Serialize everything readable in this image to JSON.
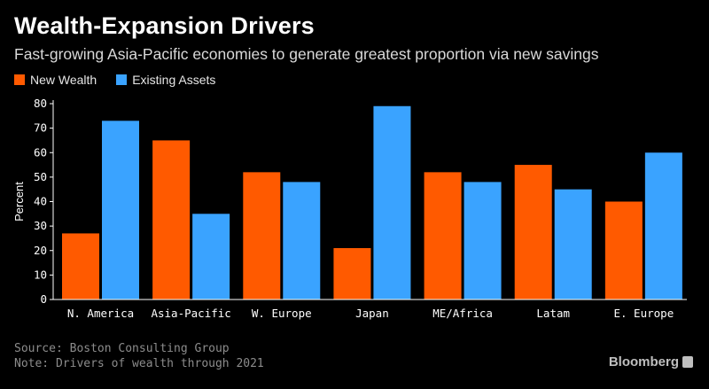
{
  "header": {
    "title": "Wealth-Expansion Drivers",
    "subtitle": "Fast-growing Asia-Pacific economies to generate greatest proportion via new savings"
  },
  "footer": {
    "source": "Source: Boston Consulting Group",
    "note": "Note: Drivers of wealth through 2021",
    "brand": "Bloomberg"
  },
  "colors": {
    "new_wealth": "#ff5a00",
    "existing_assets": "#3aa3ff",
    "axis": "#ffffff",
    "background": "#000000"
  },
  "chart_data": {
    "type": "bar",
    "title": "Wealth-Expansion Drivers",
    "subtitle": "Fast-growing Asia-Pacific economies to generate greatest proportion via new savings",
    "xlabel": "",
    "ylabel": "Percent",
    "ylim": [
      0,
      80
    ],
    "yticks": [
      0,
      10,
      20,
      30,
      40,
      50,
      60,
      70,
      80
    ],
    "categories": [
      "N. America",
      "Asia-Pacific",
      "W. Europe",
      "Japan",
      "ME/Africa",
      "Latam",
      "E. Europe"
    ],
    "series": [
      {
        "name": "New Wealth",
        "color": "#ff5a00",
        "values": [
          27,
          65,
          52,
          21,
          52,
          55,
          40
        ]
      },
      {
        "name": "Existing Assets",
        "color": "#3aa3ff",
        "values": [
          73,
          35,
          48,
          79,
          48,
          45,
          60
        ]
      }
    ],
    "legend": "top-left",
    "grid": false
  }
}
